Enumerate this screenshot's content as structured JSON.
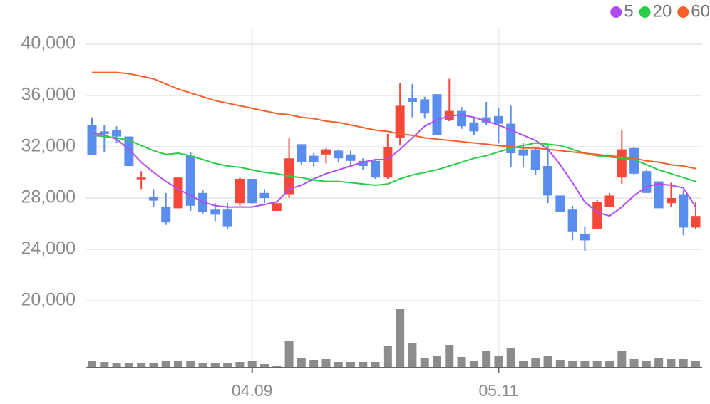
{
  "chart_data": {
    "type": "candlestick",
    "categories": [
      null,
      null,
      null,
      null,
      null,
      null,
      null,
      null,
      null,
      null,
      null,
      null,
      null,
      "04.09",
      null,
      null,
      null,
      null,
      null,
      null,
      null,
      null,
      null,
      null,
      null,
      null,
      null,
      null,
      null,
      null,
      null,
      null,
      null,
      "05.11",
      null,
      null,
      null,
      null,
      null,
      null,
      null,
      null,
      null,
      null,
      null,
      null,
      null,
      null,
      null,
      null
    ],
    "open": [
      33700,
      33200,
      33300,
      32800,
      29500,
      28100,
      27300,
      27200,
      31300,
      28400,
      27100,
      27100,
      27600,
      29500,
      28400,
      27000,
      28300,
      32200,
      31300,
      31400,
      31700,
      31400,
      30900,
      30900,
      29600,
      32700,
      35800,
      35700,
      36100,
      34100,
      34800,
      33900,
      34300,
      34400,
      33800,
      31800,
      31800,
      30500,
      28200,
      27100,
      25200,
      25600,
      27300,
      29600,
      31900,
      30100,
      29300,
      27600,
      28300,
      25700
    ],
    "high": [
      34300,
      33700,
      33600,
      32800,
      30100,
      28700,
      28400,
      29600,
      31600,
      28600,
      27600,
      27600,
      29600,
      29500,
      28700,
      27600,
      32700,
      32200,
      31500,
      31900,
      31800,
      31700,
      31100,
      31000,
      33000,
      37000,
      36900,
      35900,
      36100,
      37300,
      35100,
      34300,
      35500,
      35000,
      35200,
      32300,
      31900,
      32100,
      28200,
      27400,
      25800,
      27900,
      28400,
      33300,
      32000,
      30200,
      29300,
      29200,
      28600,
      27700
    ],
    "low": [
      31350,
      31600,
      32300,
      30500,
      28700,
      27300,
      25900,
      27200,
      27000,
      26800,
      26200,
      25600,
      27400,
      27500,
      27600,
      27000,
      28000,
      30600,
      30400,
      30700,
      30800,
      30600,
      30200,
      29500,
      29500,
      32100,
      34300,
      34200,
      32900,
      34000,
      33400,
      32900,
      33700,
      32300,
      30400,
      30400,
      29800,
      27600,
      26900,
      24700,
      23900,
      25600,
      27300,
      29100,
      29800,
      28400,
      27200,
      27300,
      25100,
      25600
    ],
    "close": [
      31350,
      33000,
      32800,
      30500,
      29600,
      27800,
      26100,
      29600,
      27400,
      26900,
      26700,
      25800,
      29500,
      27600,
      28000,
      27600,
      31100,
      30800,
      30800,
      31800,
      31100,
      30900,
      30500,
      29600,
      32000,
      35200,
      35500,
      34600,
      32900,
      34800,
      33600,
      33200,
      33900,
      33800,
      31500,
      31300,
      30200,
      28200,
      26900,
      25400,
      24700,
      27700,
      28200,
      31800,
      29900,
      28400,
      27200,
      28000,
      25700,
      26600
    ],
    "volume": [
      10,
      8,
      7,
      7,
      7,
      7,
      9,
      9,
      10,
      7,
      7,
      7,
      8,
      10,
      5,
      3,
      38,
      14,
      11,
      12,
      8,
      8,
      8,
      8,
      30,
      82,
      34,
      14,
      17,
      32,
      15,
      10,
      24,
      17,
      28,
      10,
      13,
      17,
      11,
      9,
      9,
      9,
      9,
      24,
      12,
      9,
      14,
      12,
      12,
      9
    ],
    "up_color": "#f5483b",
    "down_color": "#5b8def",
    "volume_color": "#8c8c8c",
    "series": [
      {
        "name": "5",
        "color": "#b24cf0",
        "values": [
          33100,
          32900,
          32600,
          31800,
          30800,
          30000,
          29300,
          28700,
          28200,
          27700,
          27400,
          27300,
          27300,
          27300,
          27500,
          27700,
          28700,
          29000,
          29500,
          29900,
          30200,
          30500,
          30800,
          31000,
          31000,
          31800,
          32700,
          33600,
          34100,
          34400,
          34500,
          34300,
          34000,
          33700,
          33300,
          32900,
          32500,
          31800,
          30600,
          29200,
          27700,
          26900,
          26600,
          27300,
          28200,
          28900,
          29100,
          29000,
          28800,
          27300
        ]
      },
      {
        "name": "20",
        "color": "#2bcc4a",
        "values": [
          32900,
          32800,
          32700,
          32500,
          32100,
          31700,
          31400,
          31500,
          31300,
          31000,
          30700,
          30500,
          30400,
          30200,
          30000,
          29900,
          29700,
          29600,
          29400,
          29300,
          29300,
          29200,
          29100,
          29000,
          29100,
          29500,
          29800,
          30000,
          30200,
          30500,
          30800,
          31100,
          31300,
          31600,
          31900,
          32100,
          32300,
          32200,
          32100,
          31800,
          31500,
          31300,
          31200,
          31100,
          31000,
          30600,
          30200,
          29900,
          29600,
          29300
        ]
      },
      {
        "name": "60",
        "color": "#f5602a",
        "values": [
          37800,
          37800,
          37800,
          37700,
          37500,
          37300,
          36900,
          36500,
          36200,
          35900,
          35600,
          35400,
          35200,
          35000,
          34800,
          34600,
          34500,
          34300,
          34200,
          34000,
          33900,
          33700,
          33500,
          33300,
          33200,
          33000,
          32900,
          32700,
          32600,
          32500,
          32400,
          32300,
          32200,
          32100,
          32000,
          31900,
          31900,
          31800,
          31700,
          31600,
          31500,
          31400,
          31300,
          31200,
          31100,
          30900,
          30800,
          30600,
          30500,
          30300
        ]
      }
    ],
    "ylim": [
      20000,
      40000
    ],
    "yticks": [
      {
        "value": 20000,
        "label": "20,000"
      },
      {
        "value": 24000,
        "label": "24,000"
      },
      {
        "value": 28000,
        "label": "28,000"
      },
      {
        "value": 32000,
        "label": "32,000"
      },
      {
        "value": 36000,
        "label": "36,000"
      },
      {
        "value": 40000,
        "label": "40,000"
      }
    ],
    "grid": true,
    "legend": "top-right"
  }
}
